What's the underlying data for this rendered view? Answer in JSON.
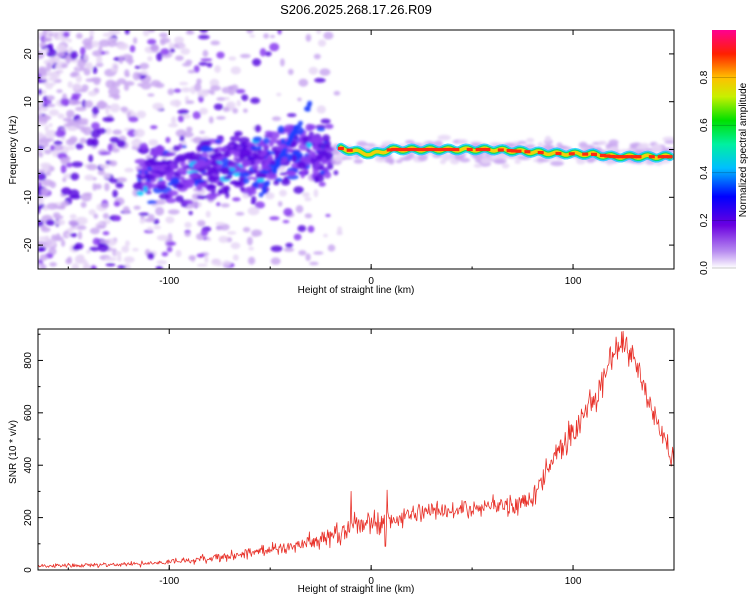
{
  "title": "S206.2025.268.17.26.R09",
  "colors": {
    "snr_line": "#e8322a",
    "specgram_scale": [
      "#e6d6f6",
      "#c9a8f0",
      "#8a3cf0",
      "#5a08e0",
      "#2040ff",
      "#00c8ff",
      "#00e060",
      "#b0e000",
      "#ffc000",
      "#ff3000",
      "#ff0080"
    ]
  },
  "chart_data": [
    {
      "name": "spectrogram",
      "type": "heatmap",
      "title": "S206.2025.268.17.26.R09",
      "xlabel": "Height of straight line (km)",
      "ylabel": "Frequency (Hz)",
      "xlim": [
        -165,
        150
      ],
      "ylim": [
        -25,
        25
      ],
      "x_ticks": [
        -100,
        0,
        100
      ],
      "y_ticks": [
        -20,
        -10,
        0,
        10,
        20
      ],
      "x_tick_labels": [
        "-100",
        "0",
        "100"
      ],
      "y_tick_labels": [
        "-20",
        "-10",
        "0",
        "10",
        "20"
      ],
      "ridge": {
        "description": "narrow high-amplitude band near 0 Hz from about -15 km to 150 km",
        "points": [
          {
            "x": -15,
            "freq": 0.2,
            "amplitude": 0.85
          },
          {
            "x": 0,
            "freq": -1.0,
            "amplitude": 0.4
          },
          {
            "x": 10,
            "freq": 0.0,
            "amplitude": 0.9
          },
          {
            "x": 30,
            "freq": 0.0,
            "amplitude": 0.85
          },
          {
            "x": 60,
            "freq": 0.0,
            "amplitude": 0.8
          },
          {
            "x": 90,
            "freq": -0.8,
            "amplitude": 0.7
          },
          {
            "x": 110,
            "freq": -1.0,
            "amplitude": 0.65
          },
          {
            "x": 120,
            "freq": -1.5,
            "amplitude": 0.9
          },
          {
            "x": 148,
            "freq": -1.5,
            "amplitude": 0.75
          }
        ]
      },
      "colorbar": {
        "label": "Normalized spectral amplitude",
        "range": [
          0,
          1
        ],
        "ticks": [
          0.0,
          0.2,
          0.4,
          0.6,
          0.8
        ],
        "tick_labels": [
          "0.0",
          "0.2",
          "0.4",
          "0.6",
          "0.8"
        ]
      }
    },
    {
      "name": "snr",
      "type": "line",
      "xlabel": "Height of straight line (km)",
      "ylabel": "SNR (10 * v/v)",
      "xlim": [
        -165,
        150
      ],
      "ylim": [
        0,
        920
      ],
      "x_ticks": [
        -100,
        0,
        100
      ],
      "y_ticks": [
        0,
        200,
        400,
        600,
        800
      ],
      "x_tick_labels": [
        "-100",
        "0",
        "100"
      ],
      "y_tick_labels": [
        "0",
        "200",
        "400",
        "600",
        "800"
      ],
      "series": [
        {
          "name": "SNR",
          "envelope": {
            "x": [
              -165,
              -140,
              -120,
              -100,
              -80,
              -60,
              -40,
              -20,
              -10,
              0,
              10,
              20,
              30,
              40,
              50,
              60,
              70,
              80,
              90,
              100,
              110,
              120,
              125,
              130,
              140,
              150
            ],
            "y": [
              15,
              18,
              22,
              30,
              45,
              65,
              90,
              130,
              160,
              185,
              190,
              215,
              225,
              230,
              240,
              250,
              250,
              280,
              420,
              520,
              650,
              820,
              875,
              820,
              600,
              420
            ]
          },
          "noise_amplitude": {
            "x": [
              -165,
              -100,
              -40,
              -10,
              10,
              60,
              80,
              100,
              120,
              150
            ],
            "y": [
              6,
              10,
              25,
              45,
              40,
              30,
              45,
              60,
              50,
              40
            ]
          },
          "spikes": [
            {
              "x": -10,
              "y": 300
            },
            {
              "x": 8,
              "y": 305
            },
            {
              "x": 7,
              "y": 90
            }
          ]
        }
      ]
    }
  ]
}
